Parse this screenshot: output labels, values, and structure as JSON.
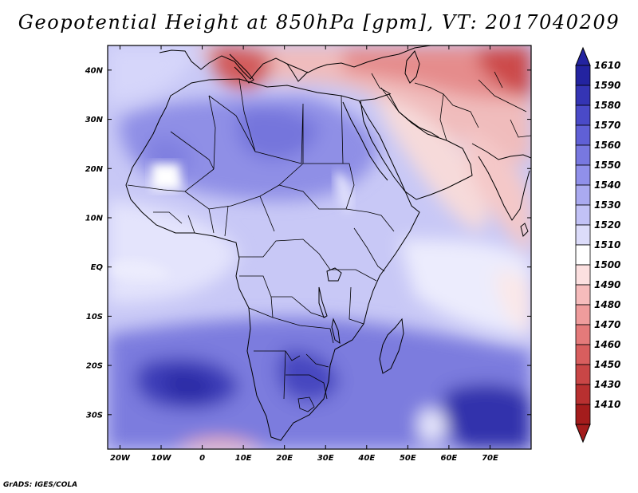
{
  "title": "Geopotential Height at 850hPa [gpm], VT: 2017040209",
  "credit": "GrADS: IGES/COLA",
  "chart_data": {
    "type": "heatmap",
    "variable": "Geopotential Height",
    "level": "850hPa",
    "units": "gpm",
    "valid_time": "2017040209",
    "lon_range": [
      -23,
      80
    ],
    "lat_range": [
      -37,
      45
    ],
    "x_ticks": [
      "20W",
      "10W",
      "0",
      "10E",
      "20E",
      "30E",
      "40E",
      "50E",
      "60E",
      "70E"
    ],
    "x_tick_values": [
      -20,
      -10,
      0,
      10,
      20,
      30,
      40,
      50,
      60,
      70
    ],
    "y_ticks": [
      "40N",
      "30N",
      "20N",
      "10N",
      "EQ",
      "10S",
      "20S",
      "30S"
    ],
    "y_tick_values": [
      40,
      30,
      20,
      10,
      0,
      -10,
      -20,
      -30
    ],
    "colorbar": {
      "levels": [
        "1610",
        "1590",
        "1580",
        "1570",
        "1560",
        "1550",
        "1540",
        "1530",
        "1520",
        "1510",
        "1500",
        "1490",
        "1480",
        "1470",
        "1460",
        "1450",
        "1430",
        "1410"
      ],
      "colors": [
        "#2323a0",
        "#3434b4",
        "#4a4ac8",
        "#6060d6",
        "#7878e0",
        "#9090ea",
        "#aaaaf0",
        "#c2c2f6",
        "#dcdcfa",
        "#ffffff",
        "#fce0e0",
        "#f6bcbc",
        "#ef9c9c",
        "#e47a7a",
        "#d85e5e",
        "#c94646",
        "#b83030",
        "#a41c1c"
      ]
    }
  }
}
